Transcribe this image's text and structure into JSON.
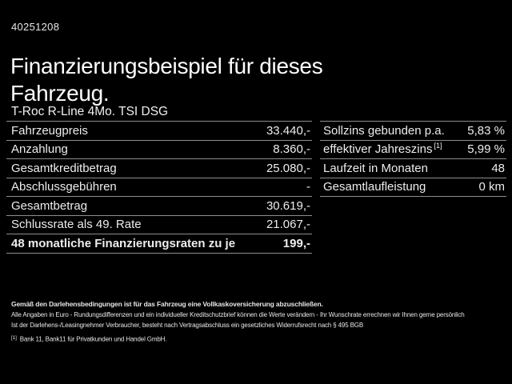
{
  "page": {
    "vehicle_id": "40251208",
    "title": "Finanzierungsbeispiel für dieses Fahrzeug.",
    "subtitle": "T-Roc R-Line 4Mo. TSI DSG"
  },
  "financing_table": {
    "rows": [
      {
        "label": "Fahrzeugpreis",
        "value": "33.440,-"
      },
      {
        "label": "Anzahlung",
        "value": "8.360,-"
      },
      {
        "label": "Gesamtkreditbetrag",
        "value": "25.080,-"
      },
      {
        "label": "Abschlussgebühren",
        "value": "-"
      },
      {
        "label": "Gesamtbetrag",
        "value": "30.619,-"
      },
      {
        "label": "Schlussrate als 49. Rate",
        "value": "21.067,-"
      },
      {
        "label": "48 monatliche Finanzierungsraten zu je",
        "value": "199,-"
      }
    ]
  },
  "conditions_table": {
    "rows": [
      {
        "label": "Sollzins gebunden p.a.",
        "value": "5,83 %"
      },
      {
        "label": "effektiver Jahreszins",
        "sup": "[1]",
        "value": "5,99 %"
      },
      {
        "label": "Laufzeit in Monaten",
        "value": "48"
      },
      {
        "label": "Gesamtlaufleistung",
        "value": "0 km"
      }
    ]
  },
  "footer": {
    "insurance_note": "Gemäß den Darlehensbedingungen ist für das Fahrzeug eine Vollkaskoversicherung abzuschließen.",
    "disclaimer_note": "Alle Angaben in Euro - Rundungsdifferenzen und ein individueller Kreditschutzbrief können die Werte verändern - Ihr Wunschrate errechnen wir Ihnen gerne persönlich",
    "withdrawal_note": "Ist der Darlehens-/Leasingnehmer Verbraucher, besteht nach Vertragsabschluss ein gesetzliches Widerrufsrecht nach § 495 BGB",
    "footnote_marker": "[1]",
    "footnote_text": "Bank 11, Bank11 für Privatkunden und Handel GmbH."
  },
  "colors": {
    "background": "#000000",
    "text": "#f0f0f0",
    "divider": "#8e8e8e"
  }
}
